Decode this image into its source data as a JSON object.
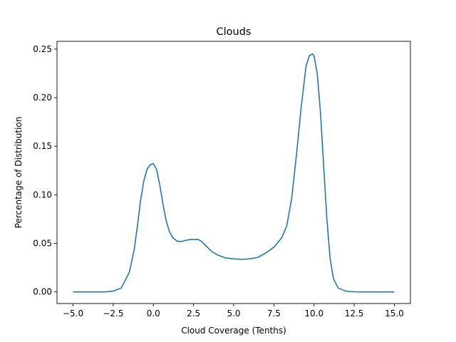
{
  "chart_data": {
    "type": "line",
    "title": "Clouds",
    "xlabel": "Cloud Coverage (Tenths)",
    "ylabel": "Percentage of Distribution",
    "xlim": [
      -6.0,
      16.0
    ],
    "ylim": [
      -0.012,
      0.258
    ],
    "xticks": [
      -5.0,
      -2.5,
      0.0,
      2.5,
      5.0,
      7.5,
      10.0,
      12.5,
      15.0
    ],
    "xtick_labels": [
      "−5.0",
      "−2.5",
      "0.0",
      "2.5",
      "5.0",
      "7.5",
      "10.0",
      "12.5",
      "15.0"
    ],
    "yticks": [
      0.0,
      0.05,
      0.1,
      0.15,
      0.2,
      0.25
    ],
    "ytick_labels": [
      "0.00",
      "0.05",
      "0.10",
      "0.15",
      "0.20",
      "0.25"
    ],
    "grid": false,
    "legend": "none",
    "color": "#1f77b4",
    "series": [
      {
        "x": [
          -5.0,
          -3.0,
          -2.5,
          -2.0,
          -1.5,
          -1.2,
          -1.0,
          -0.8,
          -0.6,
          -0.4,
          -0.2,
          0.0,
          0.2,
          0.4,
          0.6,
          0.8,
          1.0,
          1.2,
          1.5,
          1.8,
          2.0,
          2.3,
          2.6,
          2.8,
          3.0,
          3.3,
          3.6,
          4.0,
          4.5,
          5.0,
          5.5,
          6.0,
          6.5,
          7.0,
          7.5,
          8.0,
          8.3,
          8.6,
          8.9,
          9.2,
          9.5,
          9.7,
          9.9,
          10.0,
          10.2,
          10.4,
          10.6,
          10.8,
          11.0,
          11.2,
          11.5,
          12.0,
          12.5,
          13.0,
          15.0
        ],
        "y": [
          0.0,
          0.0,
          0.0008,
          0.004,
          0.02,
          0.043,
          0.067,
          0.094,
          0.114,
          0.126,
          0.131,
          0.132,
          0.126,
          0.11,
          0.09,
          0.073,
          0.062,
          0.056,
          0.052,
          0.052,
          0.053,
          0.054,
          0.054,
          0.054,
          0.052,
          0.047,
          0.042,
          0.038,
          0.035,
          0.034,
          0.0335,
          0.034,
          0.0355,
          0.04,
          0.046,
          0.056,
          0.068,
          0.095,
          0.14,
          0.19,
          0.232,
          0.243,
          0.245,
          0.243,
          0.225,
          0.185,
          0.13,
          0.075,
          0.035,
          0.014,
          0.004,
          0.0007,
          0.0001,
          0.0,
          0.0
        ]
      }
    ]
  }
}
